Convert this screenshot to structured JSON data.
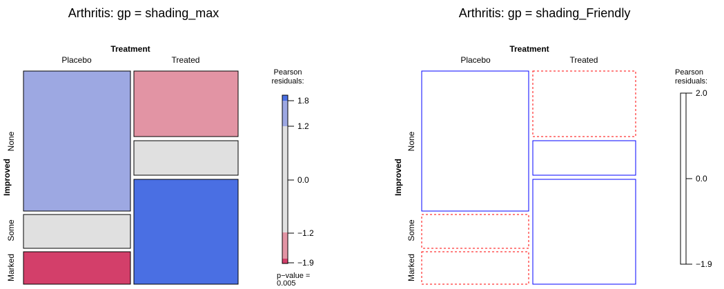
{
  "panels": [
    {
      "title": "Arthritis: gp = shading_max",
      "row_var": "Improved",
      "col_var": "Treatment",
      "columns": [
        "Placebo",
        "Treated"
      ],
      "rows": [
        "None",
        "Some",
        "Marked"
      ],
      "legend_title": [
        "Pearson",
        "residuals:"
      ],
      "legend_ticks": [
        "1.8",
        "1.2",
        "0.0",
        "−1.2",
        "−1.9"
      ],
      "pvalue": [
        "p−value =",
        "0.005"
      ],
      "colors": {
        "strong_positive": "#4a6fe3",
        "weak_positive": "#9da8e2",
        "neutral": "#e0e0e0",
        "weak_negative": "#e294a4",
        "strong_negative": "#d33f6a"
      }
    },
    {
      "title": "Arthritis: gp = shading_Friendly",
      "row_var": "Improved",
      "col_var": "Treatment",
      "columns": [
        "Placebo",
        "Treated"
      ],
      "rows": [
        "None",
        "Some",
        "Marked"
      ],
      "legend_title": [
        "Pearson",
        "residuals:"
      ],
      "legend_ticks": [
        "2.0",
        "0.0",
        "−1.9"
      ],
      "colors": {
        "positive": "#0000ff",
        "negative": "#ff0000"
      }
    }
  ],
  "chart_data": [
    {
      "type": "mosaic",
      "title": "Arthritis: gp = shading_max",
      "x_var": "Treatment",
      "y_var": "Improved",
      "categories_x": [
        "Placebo",
        "Treated"
      ],
      "categories_y": [
        "None",
        "Some",
        "Marked"
      ],
      "counts": {
        "Placebo": [
          29,
          7,
          7
        ],
        "Treated": [
          13,
          7,
          21
        ]
      },
      "legend_range": [
        -1.9,
        1.8
      ],
      "legend_ticks": [
        1.8,
        1.2,
        0.0,
        -1.2,
        -1.9
      ]
    },
    {
      "type": "mosaic",
      "title": "Arthritis: gp = shading_Friendly",
      "x_var": "Treatment",
      "y_var": "Improved",
      "categories_x": [
        "Placebo",
        "Treated"
      ],
      "categories_y": [
        "None",
        "Some",
        "Marked"
      ],
      "counts": {
        "Placebo": [
          29,
          7,
          7
        ],
        "Treated": [
          13,
          7,
          21
        ]
      },
      "legend_range": [
        -1.9,
        2.0
      ],
      "legend_ticks": [
        2.0,
        0.0,
        -1.9
      ]
    }
  ]
}
